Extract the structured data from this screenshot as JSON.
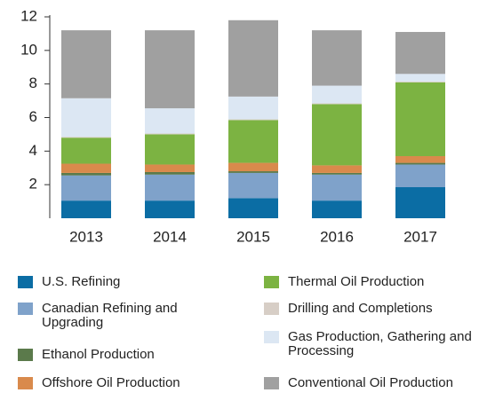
{
  "chart_data": {
    "type": "stacked_bar",
    "categories": [
      "2013",
      "2014",
      "2015",
      "2016",
      "2017"
    ],
    "ylim": [
      0,
      12
    ],
    "yticks": [
      2,
      4,
      6,
      8,
      10,
      12
    ],
    "series": [
      {
        "name": "U.S. Refining",
        "color": "#0b6da4",
        "values": [
          1.05,
          1.05,
          1.2,
          1.05,
          1.85
        ]
      },
      {
        "name": "Canadian Refining and Upgrading",
        "color": "#7fa2ca",
        "values": [
          1.5,
          1.55,
          1.5,
          1.55,
          1.35
        ]
      },
      {
        "name": "Ethanol Production",
        "color": "#5b7a4b",
        "values": [
          0.15,
          0.15,
          0.1,
          0.1,
          0.1
        ]
      },
      {
        "name": "Offshore Oil Production",
        "color": "#d98a4c",
        "values": [
          0.55,
          0.45,
          0.5,
          0.45,
          0.4
        ]
      },
      {
        "name": "Thermal Oil Production",
        "color": "#7cb342",
        "values": [
          1.55,
          1.8,
          2.55,
          3.65,
          4.4
        ]
      },
      {
        "name": "Drilling and Completions",
        "color": "#d7cec6",
        "values": [
          0.05,
          0.05,
          0.05,
          0.05,
          0.05
        ]
      },
      {
        "name": "Gas Production, Gathering and Processing",
        "color": "#dce7f3",
        "values": [
          2.3,
          1.5,
          1.35,
          1.05,
          0.45
        ]
      },
      {
        "name": "Conventional Oil Production",
        "color": "#a0a0a0",
        "values": [
          4.05,
          4.65,
          4.55,
          3.3,
          2.5
        ]
      }
    ]
  }
}
